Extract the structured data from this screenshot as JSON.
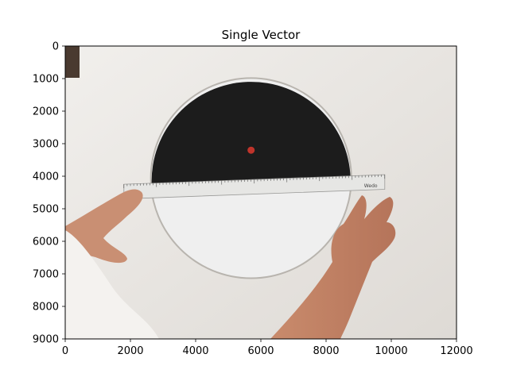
{
  "chart_data": {
    "type": "image",
    "title": "Single Vector",
    "xlabel": "",
    "ylabel": "",
    "xlim": [
      0,
      12000
    ],
    "ylim": [
      9000,
      0
    ],
    "y_inverted": true,
    "grid": false,
    "xticks": [
      0,
      2000,
      4000,
      6000,
      8000,
      10000,
      12000
    ],
    "yticks": [
      0,
      1000,
      2000,
      3000,
      4000,
      5000,
      6000,
      7000,
      8000,
      9000
    ],
    "xtick_labels": [
      "0",
      "2000",
      "4000",
      "6000",
      "8000",
      "10000",
      "12000"
    ],
    "ytick_labels": [
      "0",
      "1000",
      "2000",
      "3000",
      "4000",
      "5000",
      "6000",
      "7000",
      "8000",
      "9000"
    ],
    "scene": {
      "background_color": "#e9e6e2",
      "disc": {
        "cx": 5700,
        "cy": 4060,
        "r": 3050,
        "upper_color": "#1c1c1c",
        "lower_color": "#efefef"
      },
      "red_dot": {
        "x": 5700,
        "y": 3200,
        "color": "#c0342b"
      },
      "ruler_y": [
        4100,
        4550
      ],
      "ruler_x": [
        1800,
        9800
      ],
      "ruler_brand": "Wedo"
    }
  }
}
